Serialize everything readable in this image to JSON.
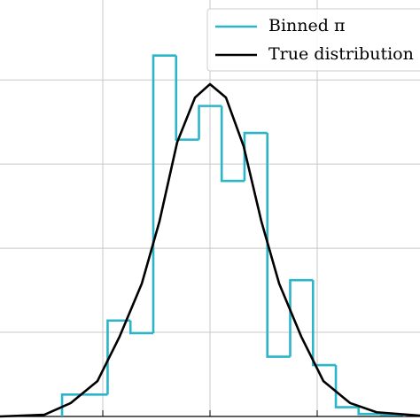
{
  "chart_data": {
    "type": "combo",
    "xlim": [
      -1.959,
      1.959
    ],
    "ylim": [
      0,
      4.95
    ],
    "xticks": [
      -1,
      0,
      1
    ],
    "yticks": [
      1,
      2,
      3,
      4
    ],
    "grid": true,
    "legend": "upper right",
    "series": [
      {
        "name": "Binned π",
        "color": "#2bb5c8",
        "type": "histogram",
        "bins": [
          -1.38,
          -1.168,
          -0.955,
          -0.742,
          -0.529,
          -0.316,
          -0.103,
          0.109,
          0.322,
          0.535,
          0.748,
          0.961,
          1.174,
          1.386,
          1.599,
          1.812
        ],
        "values": [
          0.26,
          0.26,
          1.14,
          0.99,
          4.29,
          3.29,
          3.69,
          2.8,
          3.37,
          0.71,
          1.62,
          0.61,
          0.11,
          0.03,
          0.02
        ]
      },
      {
        "name": "True distribution",
        "color": "#000000",
        "type": "line",
        "x": [
          -1.959,
          -1.545,
          -1.298,
          -1.05,
          -0.843,
          -0.636,
          -0.471,
          -0.306,
          -0.14,
          0,
          0.149,
          0.314,
          0.479,
          0.645,
          0.851,
          1.058,
          1.306,
          1.554,
          1.959
        ],
        "values": [
          0,
          0.02,
          0.16,
          0.42,
          0.95,
          1.58,
          2.32,
          3.26,
          3.79,
          3.95,
          3.79,
          3.21,
          2.32,
          1.58,
          0.95,
          0.42,
          0.16,
          0.05,
          0.01
        ]
      }
    ]
  }
}
